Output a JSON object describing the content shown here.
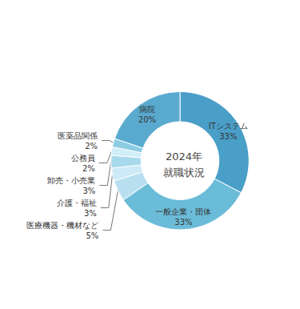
{
  "chart_data": {
    "type": "pie",
    "title": "2024年\n就職状況",
    "categories": [
      "ITシステム",
      "一般企業・団体",
      "医療機器・機材など",
      "介護・福祉",
      "卸売・小売業",
      "公務員",
      "医薬品関係",
      "病院"
    ],
    "values": [
      33,
      33,
      5,
      3,
      3,
      2,
      2,
      20
    ],
    "value_labels": [
      "33%",
      "33%",
      "5%",
      "3%",
      "3%",
      "2%",
      "2%",
      "20%"
    ],
    "colors": [
      "#4a9fc8",
      "#6bbcd8",
      "#b8dff0",
      "#cceaf8",
      "#a8d8ec",
      "#d0eef8",
      "#8ecce4",
      "#5aaad0"
    ],
    "data_labels": true
  }
}
